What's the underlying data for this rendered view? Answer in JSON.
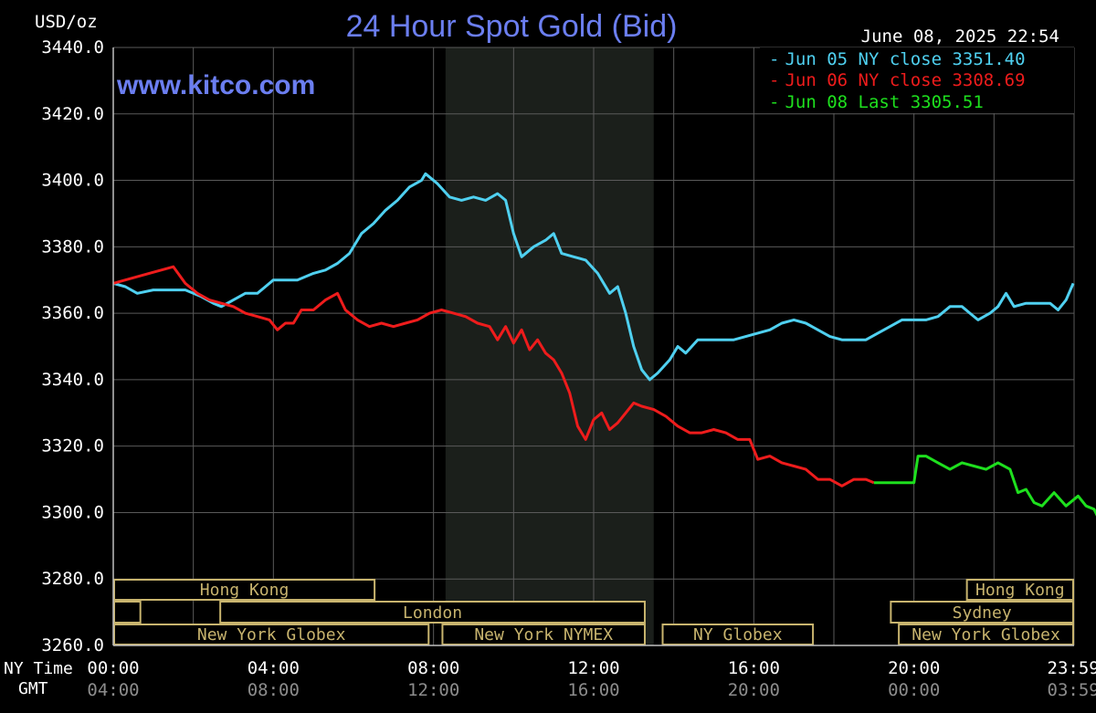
{
  "chart_data": {
    "type": "line",
    "title": "24 Hour Spot Gold (Bid)",
    "unit_label": "USD/oz",
    "watermark": "www.kitco.com",
    "timestamp": "June 08, 2025 22:54",
    "ylim": [
      3260,
      3440
    ],
    "y_ticks": [
      "3440.0",
      "3420.0",
      "3400.0",
      "3380.0",
      "3360.0",
      "3340.0",
      "3320.0",
      "3300.0",
      "3280.0",
      "3260.0"
    ],
    "x_axis_label": "NY Time",
    "x_axis_label2": "GMT",
    "x_ticks": [
      {
        "hour": 0,
        "ny": "00:00",
        "gmt": "04:00"
      },
      {
        "hour": 4,
        "ny": "04:00",
        "gmt": "08:00"
      },
      {
        "hour": 8,
        "ny": "08:00",
        "gmt": "12:00"
      },
      {
        "hour": 12,
        "ny": "12:00",
        "gmt": "16:00"
      },
      {
        "hour": 16,
        "ny": "16:00",
        "gmt": "20:00"
      },
      {
        "hour": 20,
        "ny": "20:00",
        "gmt": "00:00"
      },
      {
        "hour": 23.98,
        "ny": "23:59",
        "gmt": "03:59"
      }
    ],
    "shaded_region": [
      8.3,
      13.5
    ],
    "legend_position": "top-right",
    "series": [
      {
        "name": "Jun 05 NY close 3351.40",
        "color": "#4fd0f0",
        "points": [
          [
            0,
            3369
          ],
          [
            0.3,
            3368
          ],
          [
            0.6,
            3366
          ],
          [
            1,
            3367
          ],
          [
            1.5,
            3367
          ],
          [
            1.8,
            3367
          ],
          [
            2.2,
            3365
          ],
          [
            2.5,
            3363
          ],
          [
            2.7,
            3362
          ],
          [
            3,
            3364
          ],
          [
            3.3,
            3366
          ],
          [
            3.6,
            3366
          ],
          [
            3.8,
            3368
          ],
          [
            4,
            3370
          ],
          [
            4.3,
            3370
          ],
          [
            4.6,
            3370
          ],
          [
            5,
            3372
          ],
          [
            5.3,
            3373
          ],
          [
            5.6,
            3375
          ],
          [
            5.9,
            3378
          ],
          [
            6.2,
            3384
          ],
          [
            6.5,
            3387
          ],
          [
            6.8,
            3391
          ],
          [
            7.1,
            3394
          ],
          [
            7.4,
            3398
          ],
          [
            7.7,
            3400
          ],
          [
            7.8,
            3402
          ],
          [
            8.1,
            3399
          ],
          [
            8.4,
            3395
          ],
          [
            8.7,
            3394
          ],
          [
            9,
            3395
          ],
          [
            9.3,
            3394
          ],
          [
            9.6,
            3396
          ],
          [
            9.8,
            3394
          ],
          [
            10,
            3384
          ],
          [
            10.2,
            3377
          ],
          [
            10.5,
            3380
          ],
          [
            10.8,
            3382
          ],
          [
            11,
            3384
          ],
          [
            11.2,
            3378
          ],
          [
            11.5,
            3377
          ],
          [
            11.8,
            3376
          ],
          [
            12.1,
            3372
          ],
          [
            12.4,
            3366
          ],
          [
            12.6,
            3368
          ],
          [
            12.8,
            3360
          ],
          [
            13,
            3350
          ],
          [
            13.2,
            3343
          ],
          [
            13.4,
            3340
          ],
          [
            13.6,
            3342
          ],
          [
            13.9,
            3346
          ],
          [
            14.1,
            3350
          ],
          [
            14.3,
            3348
          ],
          [
            14.6,
            3352
          ],
          [
            14.9,
            3352
          ],
          [
            15.2,
            3352
          ],
          [
            15.5,
            3352
          ],
          [
            15.8,
            3353
          ],
          [
            16.1,
            3354
          ],
          [
            16.4,
            3355
          ],
          [
            16.7,
            3357
          ],
          [
            17,
            3358
          ],
          [
            17.3,
            3357
          ],
          [
            17.6,
            3355
          ],
          [
            17.9,
            3353
          ],
          [
            18.2,
            3352
          ],
          [
            18.5,
            3352
          ],
          [
            18.8,
            3352
          ],
          [
            19.1,
            3354
          ],
          [
            19.4,
            3356
          ],
          [
            19.7,
            3358
          ],
          [
            20,
            3358
          ],
          [
            20.3,
            3358
          ],
          [
            20.6,
            3359
          ],
          [
            20.9,
            3362
          ],
          [
            21.2,
            3362
          ],
          [
            21.4,
            3360
          ],
          [
            21.6,
            3358
          ],
          [
            21.9,
            3360
          ],
          [
            22.1,
            3362
          ],
          [
            22.3,
            3366
          ],
          [
            22.5,
            3362
          ],
          [
            22.8,
            3363
          ],
          [
            23.1,
            3363
          ],
          [
            23.4,
            3363
          ],
          [
            23.6,
            3361
          ],
          [
            23.8,
            3364
          ],
          [
            23.98,
            3369
          ]
        ]
      },
      {
        "name": "Jun 06 NY close 3308.69",
        "color": "#ee1c1c",
        "points": [
          [
            0,
            3369
          ],
          [
            0.3,
            3370
          ],
          [
            0.6,
            3371
          ],
          [
            0.9,
            3372
          ],
          [
            1.2,
            3373
          ],
          [
            1.5,
            3374
          ],
          [
            1.8,
            3369
          ],
          [
            2.1,
            3366
          ],
          [
            2.4,
            3364
          ],
          [
            2.7,
            3363
          ],
          [
            3,
            3362
          ],
          [
            3.3,
            3360
          ],
          [
            3.6,
            3359
          ],
          [
            3.9,
            3358
          ],
          [
            4.1,
            3355
          ],
          [
            4.3,
            3357
          ],
          [
            4.5,
            3357
          ],
          [
            4.7,
            3361
          ],
          [
            5,
            3361
          ],
          [
            5.3,
            3364
          ],
          [
            5.6,
            3366
          ],
          [
            5.8,
            3361
          ],
          [
            6.1,
            3358
          ],
          [
            6.4,
            3356
          ],
          [
            6.7,
            3357
          ],
          [
            7,
            3356
          ],
          [
            7.3,
            3357
          ],
          [
            7.6,
            3358
          ],
          [
            7.9,
            3360
          ],
          [
            8.2,
            3361
          ],
          [
            8.5,
            3360
          ],
          [
            8.8,
            3359
          ],
          [
            9.1,
            3357
          ],
          [
            9.4,
            3356
          ],
          [
            9.6,
            3352
          ],
          [
            9.8,
            3356
          ],
          [
            10,
            3351
          ],
          [
            10.2,
            3355
          ],
          [
            10.4,
            3349
          ],
          [
            10.6,
            3352
          ],
          [
            10.8,
            3348
          ],
          [
            11,
            3346
          ],
          [
            11.2,
            3342
          ],
          [
            11.4,
            3336
          ],
          [
            11.6,
            3326
          ],
          [
            11.8,
            3322
          ],
          [
            12,
            3328
          ],
          [
            12.2,
            3330
          ],
          [
            12.4,
            3325
          ],
          [
            12.6,
            3327
          ],
          [
            12.8,
            3330
          ],
          [
            13,
            3333
          ],
          [
            13.2,
            3332
          ],
          [
            13.5,
            3331
          ],
          [
            13.8,
            3329
          ],
          [
            14.1,
            3326
          ],
          [
            14.4,
            3324
          ],
          [
            14.7,
            3324
          ],
          [
            15,
            3325
          ],
          [
            15.3,
            3324
          ],
          [
            15.6,
            3322
          ],
          [
            15.9,
            3322
          ],
          [
            16.1,
            3316
          ],
          [
            16.4,
            3317
          ],
          [
            16.7,
            3315
          ],
          [
            17,
            3314
          ],
          [
            17.3,
            3313
          ],
          [
            17.6,
            3310
          ],
          [
            17.9,
            3310
          ],
          [
            18.2,
            3308
          ],
          [
            18.5,
            3310
          ],
          [
            18.8,
            3310
          ],
          [
            19,
            3309
          ]
        ]
      },
      {
        "name": "Jun 08 Last 3305.51",
        "color": "#1ee01e",
        "points": [
          [
            19,
            3309
          ],
          [
            19.5,
            3309
          ],
          [
            20,
            3309
          ],
          [
            20.1,
            3317
          ],
          [
            20.3,
            3317
          ],
          [
            20.6,
            3315
          ],
          [
            20.9,
            3313
          ],
          [
            21.2,
            3315
          ],
          [
            21.5,
            3314
          ],
          [
            21.8,
            3313
          ],
          [
            22.1,
            3315
          ],
          [
            22.4,
            3313
          ],
          [
            22.6,
            3306
          ],
          [
            22.8,
            3307
          ],
          [
            23,
            3303
          ],
          [
            23.2,
            3302
          ],
          [
            23.5,
            3306
          ],
          [
            23.8,
            3302
          ],
          [
            24.1,
            3305
          ],
          [
            24.3,
            3302
          ],
          [
            24.5,
            3301
          ],
          [
            24.7,
            3296
          ],
          [
            24.9,
            3299
          ],
          [
            25.1,
            3302
          ],
          [
            25.3,
            3304
          ],
          [
            25.5,
            3305
          ]
        ]
      }
    ],
    "sessions": {
      "row1": [
        {
          "label": "Hong Kong",
          "start": 0,
          "end": 6.55
        },
        {
          "label": "Hong Kong",
          "start": 21.3,
          "end": 24.4
        }
      ],
      "row2": [
        {
          "label": "",
          "start": 0,
          "end": 0.7
        },
        {
          "label": "London",
          "start": 2.65,
          "end": 13.3
        },
        {
          "label": "Sydney",
          "start": 19.4,
          "end": 24.4
        }
      ],
      "row3": [
        {
          "label": "New York Globex",
          "start": 0,
          "end": 7.9
        },
        {
          "label": "New York NYMEX",
          "start": 8.2,
          "end": 13.3
        },
        {
          "label": "NY Globex",
          "start": 13.7,
          "end": 17.5
        },
        {
          "label": "New York Globex",
          "start": 19.6,
          "end": 24.4
        }
      ]
    }
  }
}
